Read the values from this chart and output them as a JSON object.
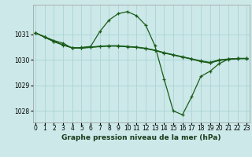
{
  "title": "Graphe pression niveau de la mer (hPa)",
  "bg_color": "#cce8e8",
  "grid_color": "#aad4d4",
  "line_color": "#1a5c1a",
  "series": [
    {
      "x": [
        0,
        1,
        2,
        3,
        4,
        5,
        6,
        7,
        8,
        9,
        10,
        11,
        12,
        13,
        14,
        15,
        16,
        17,
        18,
        19,
        20,
        21,
        22,
        23
      ],
      "y": [
        1031.05,
        1030.9,
        1030.75,
        1030.65,
        1030.45,
        1030.48,
        1030.52,
        1031.1,
        1031.55,
        1031.8,
        1031.88,
        1031.72,
        1031.35,
        1030.55,
        1029.25,
        1028.0,
        1027.85,
        1028.55,
        1029.35,
        1029.55,
        1029.85,
        1030.02,
        1030.05,
        1030.05
      ]
    },
    {
      "x": [
        0,
        1,
        2,
        3,
        4,
        5,
        6,
        7,
        8,
        9,
        10,
        11,
        12,
        13,
        14,
        15,
        16,
        17,
        18,
        19,
        20,
        21,
        22,
        23
      ],
      "y": [
        1031.05,
        1030.88,
        1030.72,
        1030.58,
        1030.47,
        1030.47,
        1030.5,
        1030.53,
        1030.55,
        1030.55,
        1030.52,
        1030.5,
        1030.45,
        1030.38,
        1030.28,
        1030.2,
        1030.12,
        1030.04,
        1029.96,
        1029.9,
        1030.0,
        1030.03,
        1030.05,
        1030.05
      ]
    },
    {
      "x": [
        0,
        1,
        2,
        3,
        4,
        5,
        6,
        7,
        8,
        9,
        10,
        11,
        12,
        13,
        14,
        15,
        16,
        17,
        18,
        19,
        20,
        21,
        22,
        23
      ],
      "y": [
        1031.05,
        1030.88,
        1030.72,
        1030.58,
        1030.47,
        1030.46,
        1030.49,
        1030.52,
        1030.54,
        1030.54,
        1030.51,
        1030.49,
        1030.44,
        1030.37,
        1030.27,
        1030.19,
        1030.11,
        1030.03,
        1029.94,
        1029.88,
        1029.98,
        1030.02,
        1030.05,
        1030.05
      ]
    },
    {
      "x": [
        0,
        1,
        2,
        3,
        4,
        5,
        6,
        7,
        8,
        9,
        10,
        11,
        12,
        13,
        14,
        15,
        16,
        17,
        18,
        19,
        20,
        21,
        22,
        23
      ],
      "y": [
        1031.05,
        1030.88,
        1030.7,
        1030.57,
        1030.46,
        1030.45,
        1030.48,
        1030.51,
        1030.53,
        1030.53,
        1030.5,
        1030.48,
        1030.43,
        1030.36,
        1030.26,
        1030.18,
        1030.1,
        1030.02,
        1029.93,
        1029.87,
        1029.97,
        1030.01,
        1030.04,
        1030.04
      ]
    }
  ],
  "yticks": [
    1028,
    1029,
    1030,
    1031
  ],
  "xticks": [
    0,
    1,
    2,
    3,
    4,
    5,
    6,
    7,
    8,
    9,
    10,
    11,
    12,
    13,
    14,
    15,
    16,
    17,
    18,
    19,
    20,
    21,
    22,
    23
  ],
  "xlim": [
    -0.3,
    23.3
  ],
  "ylim": [
    1027.55,
    1032.15
  ],
  "tick_fontsize": 5.5,
  "title_fontsize": 6.5
}
